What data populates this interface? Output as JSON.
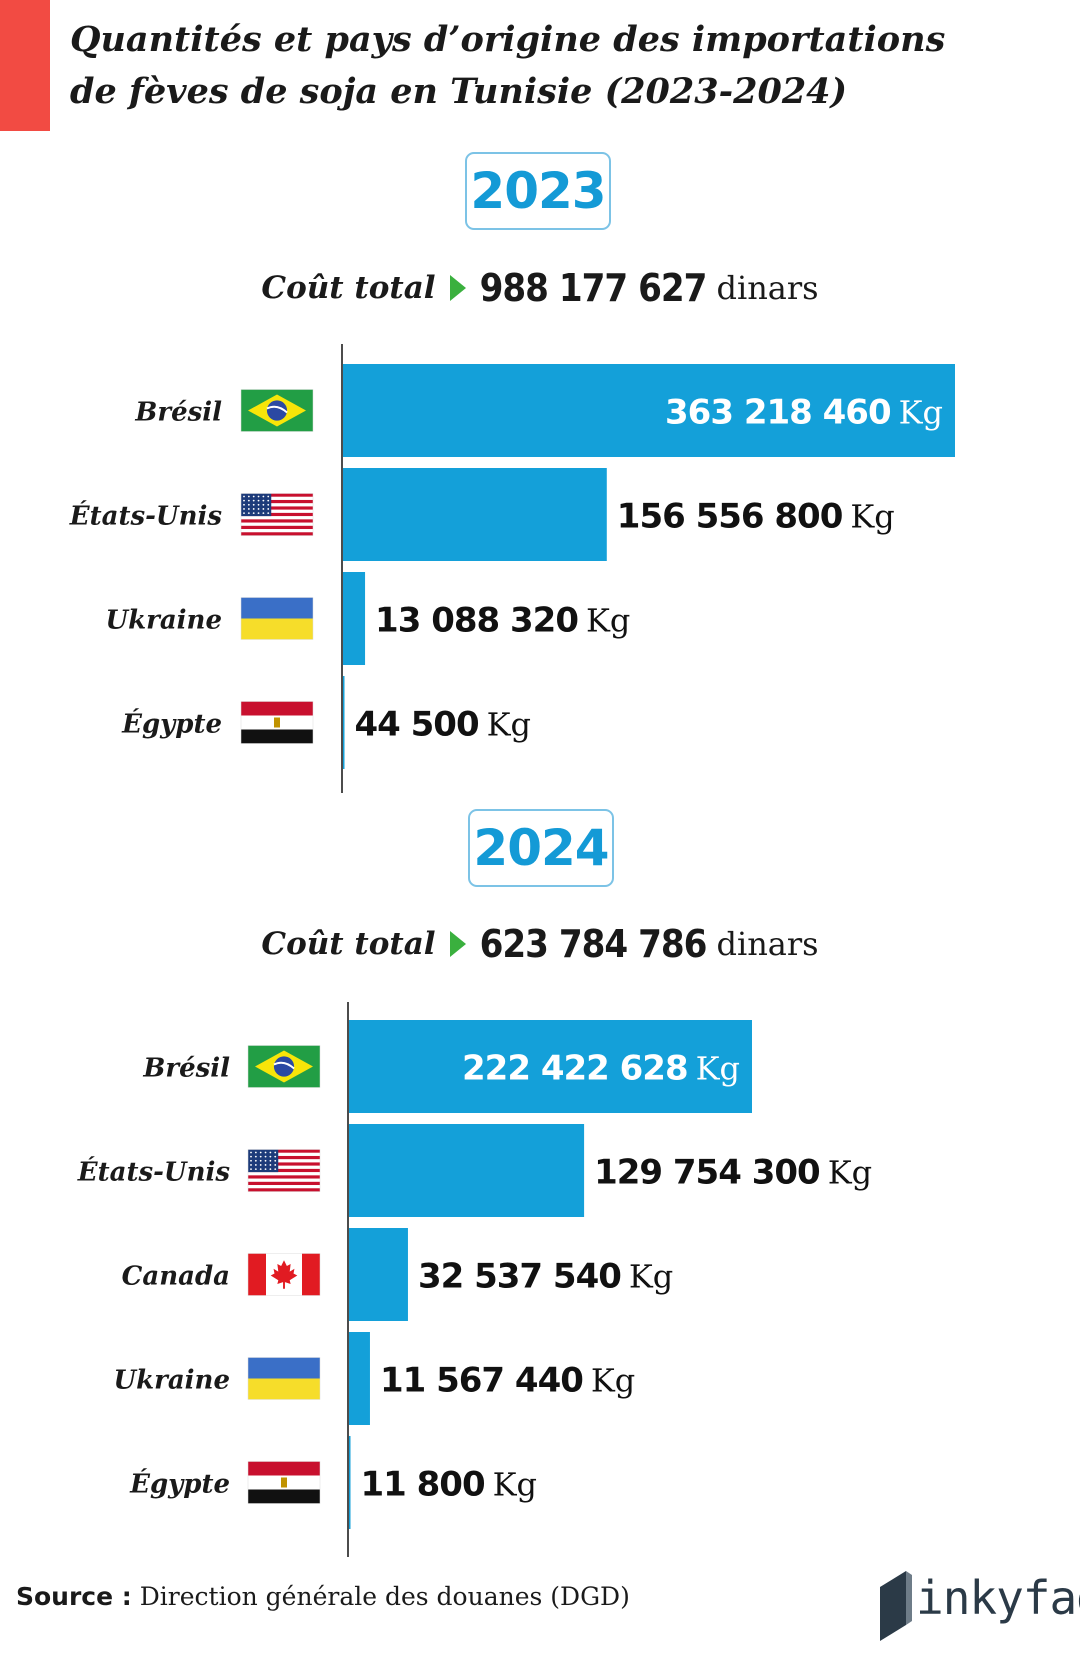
{
  "title": {
    "line1": "Quantités et pays d’origine des importations",
    "line2": "de fèves de soja en Tunisie (2023-2024)"
  },
  "colors": {
    "accent": "#f24b43",
    "bar": "#14a0d9",
    "year": "#149ad6",
    "arrow": "#3ab03e"
  },
  "sections": [
    {
      "year": "2023",
      "cost_label": "Coût total",
      "cost_value": "988 177 627",
      "cost_unit": "dinars"
    },
    {
      "year": "2024",
      "cost_label": "Coût total",
      "cost_value": "623 784 786",
      "cost_unit": "dinars"
    }
  ],
  "chart_data": [
    {
      "type": "bar",
      "orientation": "horizontal",
      "title": "2023",
      "unit": "Kg",
      "categories": [
        "Brésil",
        "États-Unis",
        "Ukraine",
        "Égypte"
      ],
      "flags": [
        "brazil-flag-icon",
        "usa-flag-icon",
        "ukraine-flag-icon",
        "egypt-flag-icon"
      ],
      "values": [
        363218460,
        156556800,
        13088320,
        44500
      ],
      "value_labels": [
        "363 218 460",
        "156 556 800",
        "13 088 320",
        "44 500"
      ]
    },
    {
      "type": "bar",
      "orientation": "horizontal",
      "title": "2024",
      "unit": "Kg",
      "categories": [
        "Brésil",
        "États-Unis",
        "Canada",
        "Ukraine",
        "Égypte"
      ],
      "flags": [
        "brazil-flag-icon",
        "usa-flag-icon",
        "canada-flag-icon",
        "ukraine-flag-icon",
        "egypt-flag-icon"
      ],
      "values": [
        222422628,
        129754300,
        32537540,
        11567440,
        11800
      ],
      "value_labels": [
        "222 422 628",
        "129 754 300",
        "32 537 540",
        "11 567 440",
        "11 800"
      ]
    }
  ],
  "source": {
    "label": "Source :",
    "text": "Direction générale des douanes (DGD)"
  },
  "logo": {
    "text": "inkyfada"
  }
}
